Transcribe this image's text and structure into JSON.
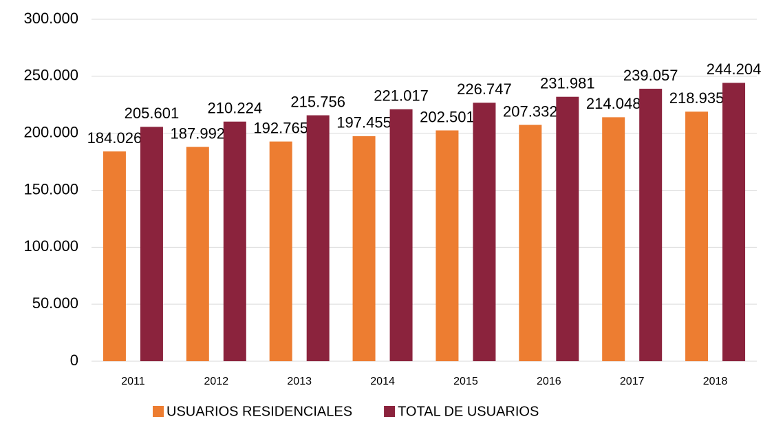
{
  "chart_data": {
    "type": "bar",
    "categories": [
      "2011",
      "2012",
      "2013",
      "2014",
      "2015",
      "2016",
      "2017",
      "2018"
    ],
    "series": [
      {
        "name": "USUARIOS RESIDENCIALES",
        "color": "#ed7d31",
        "values": [
          184026,
          187992,
          192765,
          197455,
          202501,
          207332,
          214048,
          218935
        ],
        "value_labels": [
          "184.026",
          "187.992",
          "192.765",
          "197.455",
          "202.501",
          "207.332",
          "214.048",
          "218.935"
        ]
      },
      {
        "name": "TOTAL DE USUARIOS",
        "color": "#8b233d",
        "values": [
          205601,
          210224,
          215756,
          221017,
          226747,
          231981,
          239057,
          244204
        ],
        "value_labels": [
          "205.601",
          "210.224",
          "215.756",
          "221.017",
          "226.747",
          "231.981",
          "239.057",
          "244.204"
        ]
      }
    ],
    "ylim": [
      0,
      300000
    ],
    "yticks": [
      0,
      {
        "value": 50000,
        "label": "50.000"
      },
      {
        "value": 100000,
        "label": "100.000"
      },
      {
        "value": 150000,
        "label": "150.000"
      },
      {
        "value": 200000,
        "label": "200.000"
      },
      {
        "value": 250000,
        "label": "250.000"
      },
      {
        "value": 300000,
        "label": "300.000"
      }
    ],
    "grid": true,
    "legend": "bottom"
  }
}
